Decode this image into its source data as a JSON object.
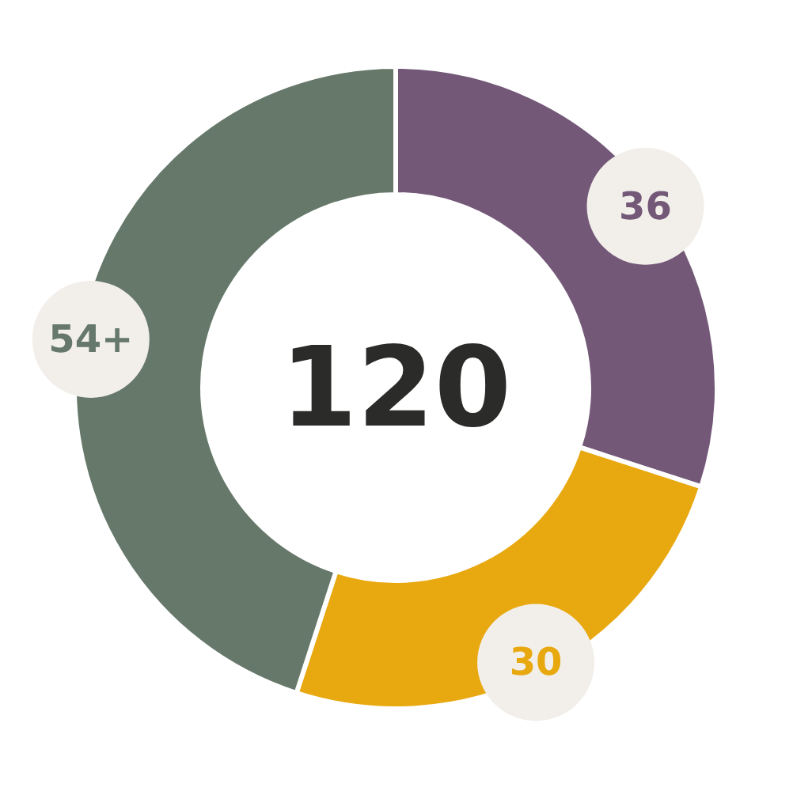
{
  "chart_data": {
    "type": "donut",
    "categories": [
      null,
      null,
      null
    ],
    "values": [
      36,
      30,
      54
    ],
    "colors": [
      "#735878",
      "#e8a80f",
      "#66786a"
    ],
    "value_labels": [
      "36",
      "30",
      "54+"
    ],
    "annotations": [
      "120"
    ]
  }
}
